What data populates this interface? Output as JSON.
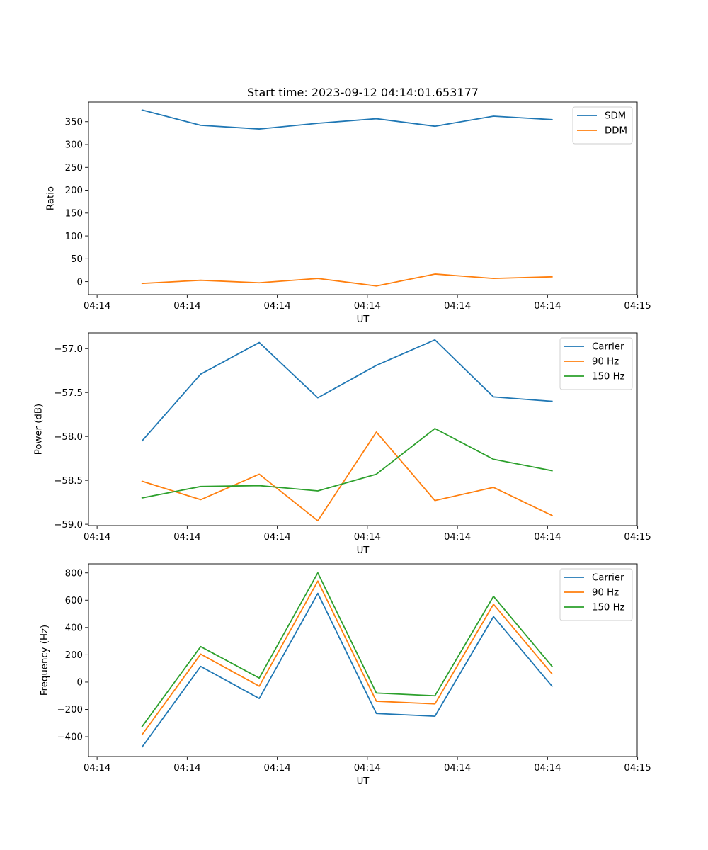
{
  "colors": {
    "c0": "#1f77b4",
    "c1": "#ff7f0e",
    "c2": "#2ca02c"
  },
  "chart_data": [
    {
      "type": "line",
      "title": "Start time: 2023-09-12 04:14:01.653177",
      "xlabel": "UT",
      "ylabel": "Ratio",
      "x": [
        0.5,
        1.15,
        1.8,
        2.45,
        3.1,
        3.75,
        4.4,
        5.05
      ],
      "xlim": [
        -0.0953,
        5.9953
      ],
      "xticks": [
        0,
        1,
        2,
        3,
        4,
        5,
        6
      ],
      "xtick_labels": [
        "04:14",
        "04:14",
        "04:14",
        "04:14",
        "04:14",
        "04:14",
        "04:15"
      ],
      "ylim": [
        -28.5,
        393
      ],
      "yticks": [
        0,
        50,
        100,
        150,
        200,
        250,
        300,
        350
      ],
      "ytick_labels": [
        "0",
        "50",
        "100",
        "150",
        "200",
        "250",
        "300",
        "350"
      ],
      "legend": "top-right",
      "series": [
        {
          "name": "SDM",
          "color": "#1f77b4",
          "values": [
            375.5,
            342,
            334,
            346.5,
            356.5,
            340,
            362,
            354.5
          ]
        },
        {
          "name": "DDM",
          "color": "#ff7f0e",
          "values": [
            -4,
            3,
            -2.5,
            7,
            -9.5,
            16.5,
            7,
            10.5
          ]
        }
      ]
    },
    {
      "type": "line",
      "title": "",
      "xlabel": "UT",
      "ylabel": "Power (dB)",
      "x": [
        0.5,
        1.15,
        1.8,
        2.45,
        3.1,
        3.75,
        4.4,
        5.05
      ],
      "xlim": [
        -0.0953,
        5.9953
      ],
      "xticks": [
        0,
        1,
        2,
        3,
        4,
        5,
        6
      ],
      "xtick_labels": [
        "04:14",
        "04:14",
        "04:14",
        "04:14",
        "04:14",
        "04:14",
        "04:15"
      ],
      "ylim": [
        -59.0153,
        -56.8205
      ],
      "yticks": [
        -59.0,
        -58.5,
        -58.0,
        -57.5,
        -57.0
      ],
      "ytick_labels": [
        "−59.0",
        "−58.5",
        "−58.0",
        "−57.5",
        "−57.0"
      ],
      "legend": "top-right",
      "series": [
        {
          "name": "Carrier",
          "color": "#1f77b4",
          "values": [
            -58.05,
            -57.29,
            -56.93,
            -57.56,
            -57.19,
            -56.9,
            -57.55,
            -57.6
          ]
        },
        {
          "name": "90 Hz",
          "color": "#ff7f0e",
          "values": [
            -58.51,
            -58.72,
            -58.43,
            -58.96,
            -57.95,
            -58.73,
            -58.58,
            -58.9
          ]
        },
        {
          "name": "150 Hz",
          "color": "#2ca02c",
          "values": [
            -58.7,
            -58.57,
            -58.56,
            -58.62,
            -58.43,
            -57.91,
            -58.26,
            -58.39
          ]
        }
      ]
    },
    {
      "type": "line",
      "title": "",
      "xlabel": "UT",
      "ylabel": "Frequency (Hz)",
      "x": [
        0.5,
        1.15,
        1.8,
        2.45,
        3.1,
        3.75,
        4.4,
        5.05
      ],
      "xlim": [
        -0.0953,
        5.9953
      ],
      "xticks": [
        0,
        1,
        2,
        3,
        4,
        5,
        6
      ],
      "xtick_labels": [
        "04:14",
        "04:14",
        "04:14",
        "04:14",
        "04:14",
        "04:14",
        "04:15"
      ],
      "ylim": [
        -545,
        866
      ],
      "yticks": [
        -400,
        -200,
        0,
        200,
        400,
        600,
        800
      ],
      "ytick_labels": [
        "−400",
        "−200",
        "0",
        "200",
        "400",
        "600",
        "800"
      ],
      "legend": "top-right",
      "series": [
        {
          "name": "Carrier",
          "color": "#1f77b4",
          "values": [
            -475,
            115,
            -120,
            650,
            -230,
            -250,
            480,
            -30
          ]
        },
        {
          "name": "90 Hz",
          "color": "#ff7f0e",
          "values": [
            -385,
            205,
            -30,
            740,
            -140,
            -160,
            570,
            60
          ]
        },
        {
          "name": "150 Hz",
          "color": "#2ca02c",
          "values": [
            -325,
            260,
            30,
            800,
            -80,
            -100,
            628,
            115
          ]
        }
      ]
    }
  ]
}
